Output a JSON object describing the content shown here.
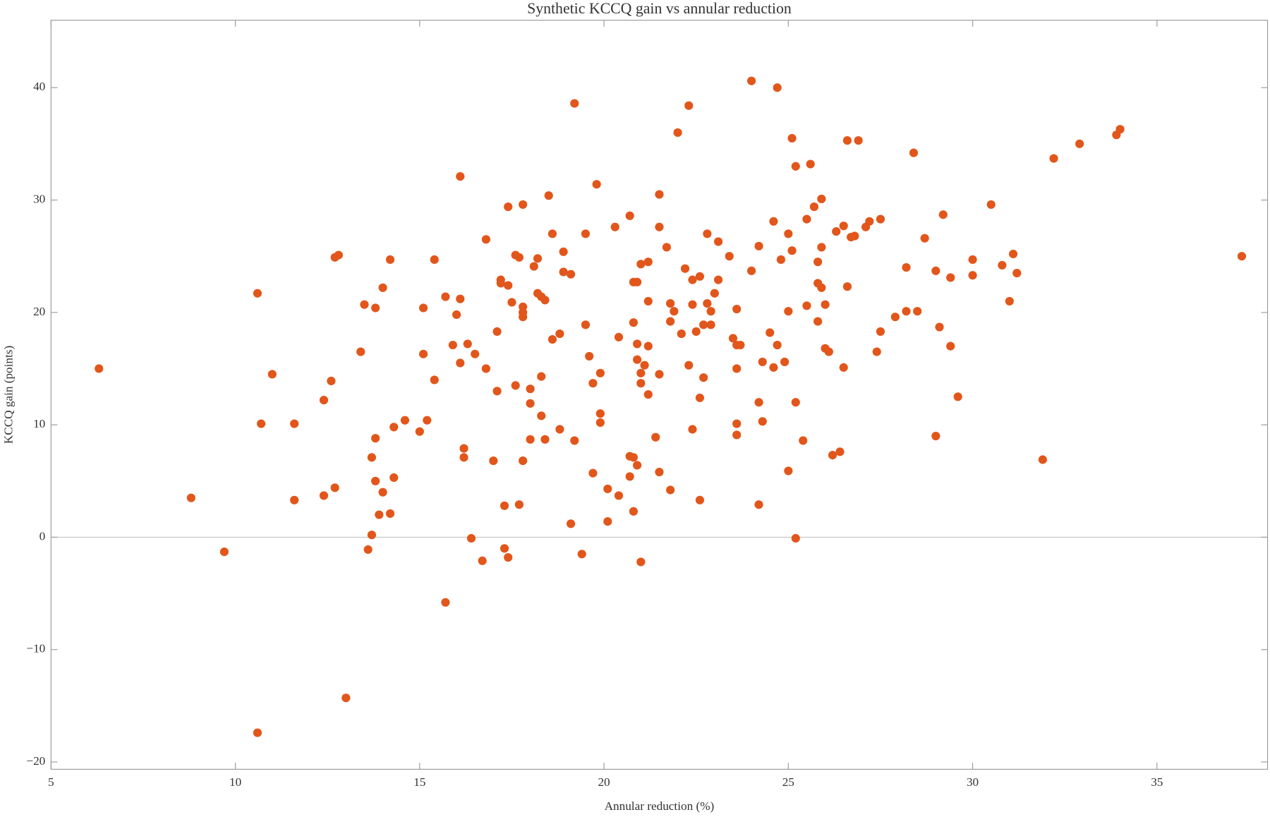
{
  "chart_data": {
    "type": "scatter",
    "title": "Synthetic KCCQ gain vs annular reduction",
    "x_label": "Annular reduction (%)",
    "y_label": "KCCQ gain (points)",
    "color": "#e2561b",
    "zero_line": true,
    "xlim": [
      5,
      38
    ],
    "ylim": [
      -20.65,
      46
    ],
    "xticks": [
      5,
      10,
      15,
      20,
      25,
      30,
      35
    ],
    "yticks": [
      {
        "value": -20,
        "label": "−20"
      },
      {
        "value": -10,
        "label": "−10"
      },
      0,
      10,
      20,
      30,
      40
    ],
    "x": [
      6.3,
      8.8,
      9.7,
      10.6,
      10.7,
      10.6,
      11.0,
      11.6,
      11.6,
      12.4,
      12.4,
      12.6,
      12.7,
      12.8,
      12.7,
      13.0,
      13.4,
      13.5,
      13.6,
      13.7,
      13.7,
      13.8,
      13.8,
      13.8,
      13.9,
      14.0,
      14.0,
      14.2,
      14.2,
      14.3,
      14.3,
      14.6,
      15.0,
      15.1,
      15.1,
      15.2,
      15.4,
      15.4,
      15.7,
      15.7,
      15.9,
      16.0,
      16.1,
      16.1,
      16.1,
      16.2,
      16.2,
      16.3,
      16.4,
      16.5,
      16.7,
      16.8,
      16.8,
      17.0,
      17.1,
      17.1,
      17.2,
      17.2,
      17.3,
      17.3,
      17.4,
      17.4,
      17.4,
      17.5,
      17.6,
      17.6,
      17.7,
      17.7,
      17.8,
      17.8,
      17.8,
      17.8,
      17.8,
      18.0,
      18.0,
      18.0,
      18.1,
      18.2,
      18.2,
      18.3,
      18.3,
      18.3,
      18.4,
      18.4,
      18.5,
      18.6,
      18.6,
      18.8,
      18.8,
      18.9,
      18.9,
      19.1,
      19.1,
      19.2,
      19.2,
      19.4,
      19.5,
      19.5,
      19.6,
      19.7,
      19.7,
      19.8,
      19.9,
      19.9,
      19.9,
      20.1,
      20.1,
      20.3,
      20.4,
      20.4,
      20.7,
      20.7,
      20.7,
      20.8,
      20.8,
      20.8,
      20.8,
      20.9,
      20.9,
      20.9,
      20.9,
      21.0,
      21.0,
      21.0,
      21.0,
      21.1,
      21.2,
      21.2,
      21.2,
      21.2,
      21.4,
      21.5,
      21.5,
      21.5,
      21.5,
      21.7,
      21.8,
      21.8,
      21.8,
      21.9,
      22.0,
      22.1,
      22.2,
      22.3,
      22.3,
      22.4,
      22.4,
      22.4,
      22.5,
      22.6,
      22.6,
      22.6,
      22.7,
      22.7,
      22.8,
      22.8,
      22.9,
      22.9,
      23.0,
      23.1,
      23.1,
      23.4,
      23.5,
      23.6,
      23.6,
      23.6,
      23.6,
      23.6,
      23.7,
      24.0,
      24.0,
      24.2,
      24.2,
      24.2,
      24.3,
      24.3,
      24.5,
      24.6,
      24.6,
      24.7,
      24.7,
      24.8,
      24.9,
      25.0,
      25.0,
      25.0,
      25.1,
      25.1,
      25.2,
      25.2,
      25.2,
      25.4,
      25.5,
      25.5,
      25.6,
      25.7,
      25.8,
      25.8,
      25.8,
      25.9,
      25.9,
      25.9,
      26.0,
      26.0,
      26.1,
      26.2,
      26.3,
      26.4,
      26.5,
      26.5,
      26.6,
      26.6,
      26.7,
      26.8,
      26.9,
      27.1,
      27.2,
      27.4,
      27.5,
      27.5,
      27.9,
      28.2,
      28.2,
      28.4,
      28.5,
      28.7,
      29.0,
      29.0,
      29.1,
      29.2,
      29.4,
      29.4,
      29.6,
      30.0,
      30.0,
      30.5,
      30.8,
      31.0,
      31.1,
      31.2,
      31.9,
      32.2,
      32.9,
      33.9,
      34.0,
      37.3
    ],
    "values": [
      15.0,
      3.5,
      -1.3,
      21.7,
      10.1,
      -17.4,
      14.5,
      10.1,
      3.3,
      12.2,
      3.7,
      13.9,
      24.9,
      25.1,
      4.4,
      -14.3,
      16.5,
      20.7,
      -1.1,
      7.1,
      0.2,
      20.4,
      8.8,
      5.0,
      2.0,
      22.2,
      4.0,
      24.7,
      2.1,
      9.8,
      5.3,
      10.4,
      9.4,
      20.4,
      16.3,
      10.4,
      24.7,
      14.0,
      -5.8,
      21.4,
      17.1,
      19.8,
      32.1,
      21.2,
      15.5,
      7.9,
      7.1,
      17.2,
      -0.1,
      16.3,
      -2.1,
      26.5,
      15.0,
      6.8,
      13.0,
      18.3,
      22.9,
      22.6,
      2.8,
      -1.0,
      22.4,
      29.4,
      -1.8,
      20.9,
      13.5,
      25.1,
      24.9,
      2.9,
      29.6,
      20.5,
      20.0,
      19.6,
      6.8,
      13.2,
      8.7,
      11.9,
      24.1,
      24.8,
      21.7,
      21.4,
      14.3,
      10.8,
      21.1,
      8.7,
      30.4,
      27.0,
      17.6,
      18.1,
      9.6,
      25.4,
      23.6,
      23.4,
      1.2,
      38.6,
      8.6,
      -1.5,
      27.0,
      18.9,
      16.1,
      13.7,
      5.7,
      31.4,
      14.6,
      11.0,
      10.2,
      4.3,
      1.4,
      27.6,
      17.8,
      3.7,
      28.6,
      7.2,
      5.4,
      22.7,
      19.1,
      7.1,
      2.3,
      22.7,
      17.2,
      15.8,
      6.4,
      24.3,
      14.6,
      13.7,
      -2.2,
      15.3,
      24.5,
      21.0,
      17.0,
      12.7,
      8.9,
      30.5,
      27.6,
      14.5,
      5.8,
      25.8,
      20.8,
      19.2,
      4.2,
      20.1,
      36.0,
      18.1,
      23.9,
      38.4,
      15.3,
      22.9,
      20.7,
      9.6,
      18.3,
      23.2,
      12.4,
      3.3,
      18.9,
      14.2,
      27.0,
      20.8,
      20.1,
      18.9,
      21.7,
      26.3,
      22.9,
      25.0,
      17.7,
      20.3,
      17.1,
      15.0,
      10.1,
      9.1,
      17.1,
      23.7,
      40.6,
      25.9,
      12.0,
      2.9,
      15.6,
      10.3,
      18.2,
      28.1,
      15.1,
      40.0,
      17.1,
      24.7,
      15.6,
      27.0,
      20.1,
      5.9,
      35.5,
      25.5,
      33.0,
      12.0,
      -0.1,
      8.6,
      28.3,
      20.6,
      33.2,
      29.4,
      24.5,
      22.6,
      19.2,
      25.8,
      30.1,
      22.2,
      20.7,
      16.8,
      16.5,
      7.3,
      27.2,
      7.6,
      27.7,
      15.1,
      35.3,
      22.3,
      26.7,
      26.8,
      35.3,
      27.6,
      28.1,
      16.5,
      28.3,
      18.3,
      19.6,
      24.0,
      20.1,
      34.2,
      20.1,
      26.6,
      23.7,
      9.0,
      18.7,
      28.7,
      23.1,
      17.0,
      12.5,
      24.7,
      23.3,
      29.6,
      24.2,
      21.0,
      25.2,
      23.5,
      6.9,
      33.7,
      35.0,
      35.8,
      36.3,
      25.0
    ]
  }
}
